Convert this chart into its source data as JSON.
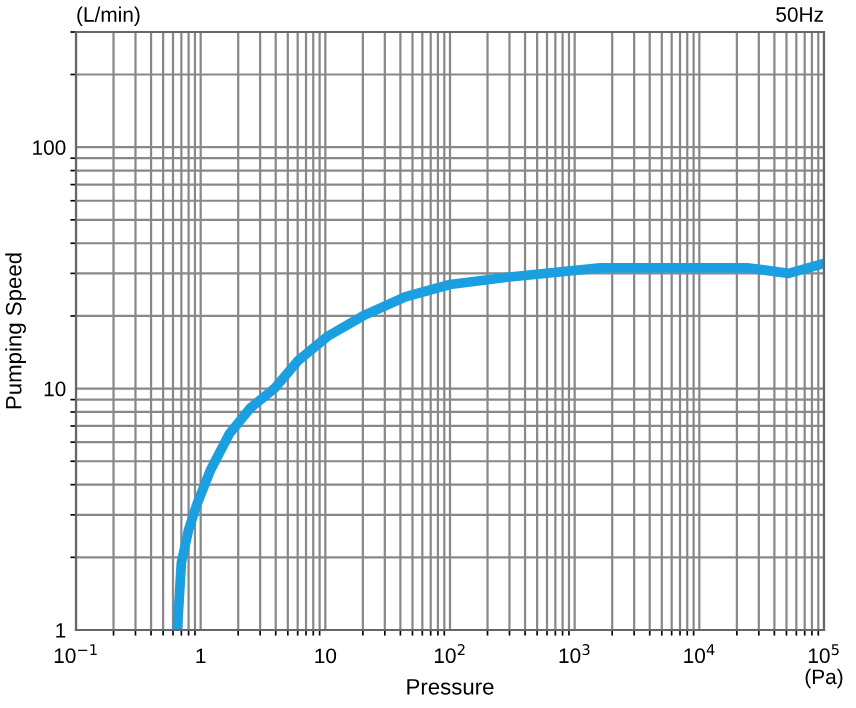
{
  "chart_data": {
    "type": "line",
    "xlabel": "Pressure",
    "ylabel": "Pumping Speed",
    "log": "xy",
    "grid": true,
    "marker": "none",
    "line_style": "solid",
    "annotations": [
      "(L/min)",
      "50Hz",
      "(Pa)"
    ],
    "xlim": [
      0.1,
      100000
    ],
    "ylim": [
      1,
      300
    ],
    "xticks": [
      {
        "value": 0.1,
        "label": "10$^{−1}$"
      },
      1,
      10,
      {
        "value": 100,
        "label": "10$^{2}$"
      },
      {
        "value": 1000,
        "label": "10$^{3}$"
      },
      {
        "value": 10000,
        "label": "10$^{4}$"
      },
      {
        "value": 100000,
        "label": "10$^{5}$"
      }
    ],
    "yticks": [
      1,
      10,
      100
    ],
    "series": [
      {
        "color": "#1aa0e0",
        "x": [
          0.65,
          0.7,
          0.8,
          0.93,
          1.2,
          1.7,
          2.5,
          3.9,
          6,
          10.5,
          20,
          44,
          100,
          300,
          1600,
          25000,
          52000,
          100000
        ],
        "values": [
          1,
          1.9,
          2.6,
          3.3,
          4.6,
          6.5,
          8.3,
          10,
          13,
          16.5,
          20,
          24,
          27,
          29,
          31.6,
          31.6,
          30,
          33
        ]
      }
    ]
  }
}
